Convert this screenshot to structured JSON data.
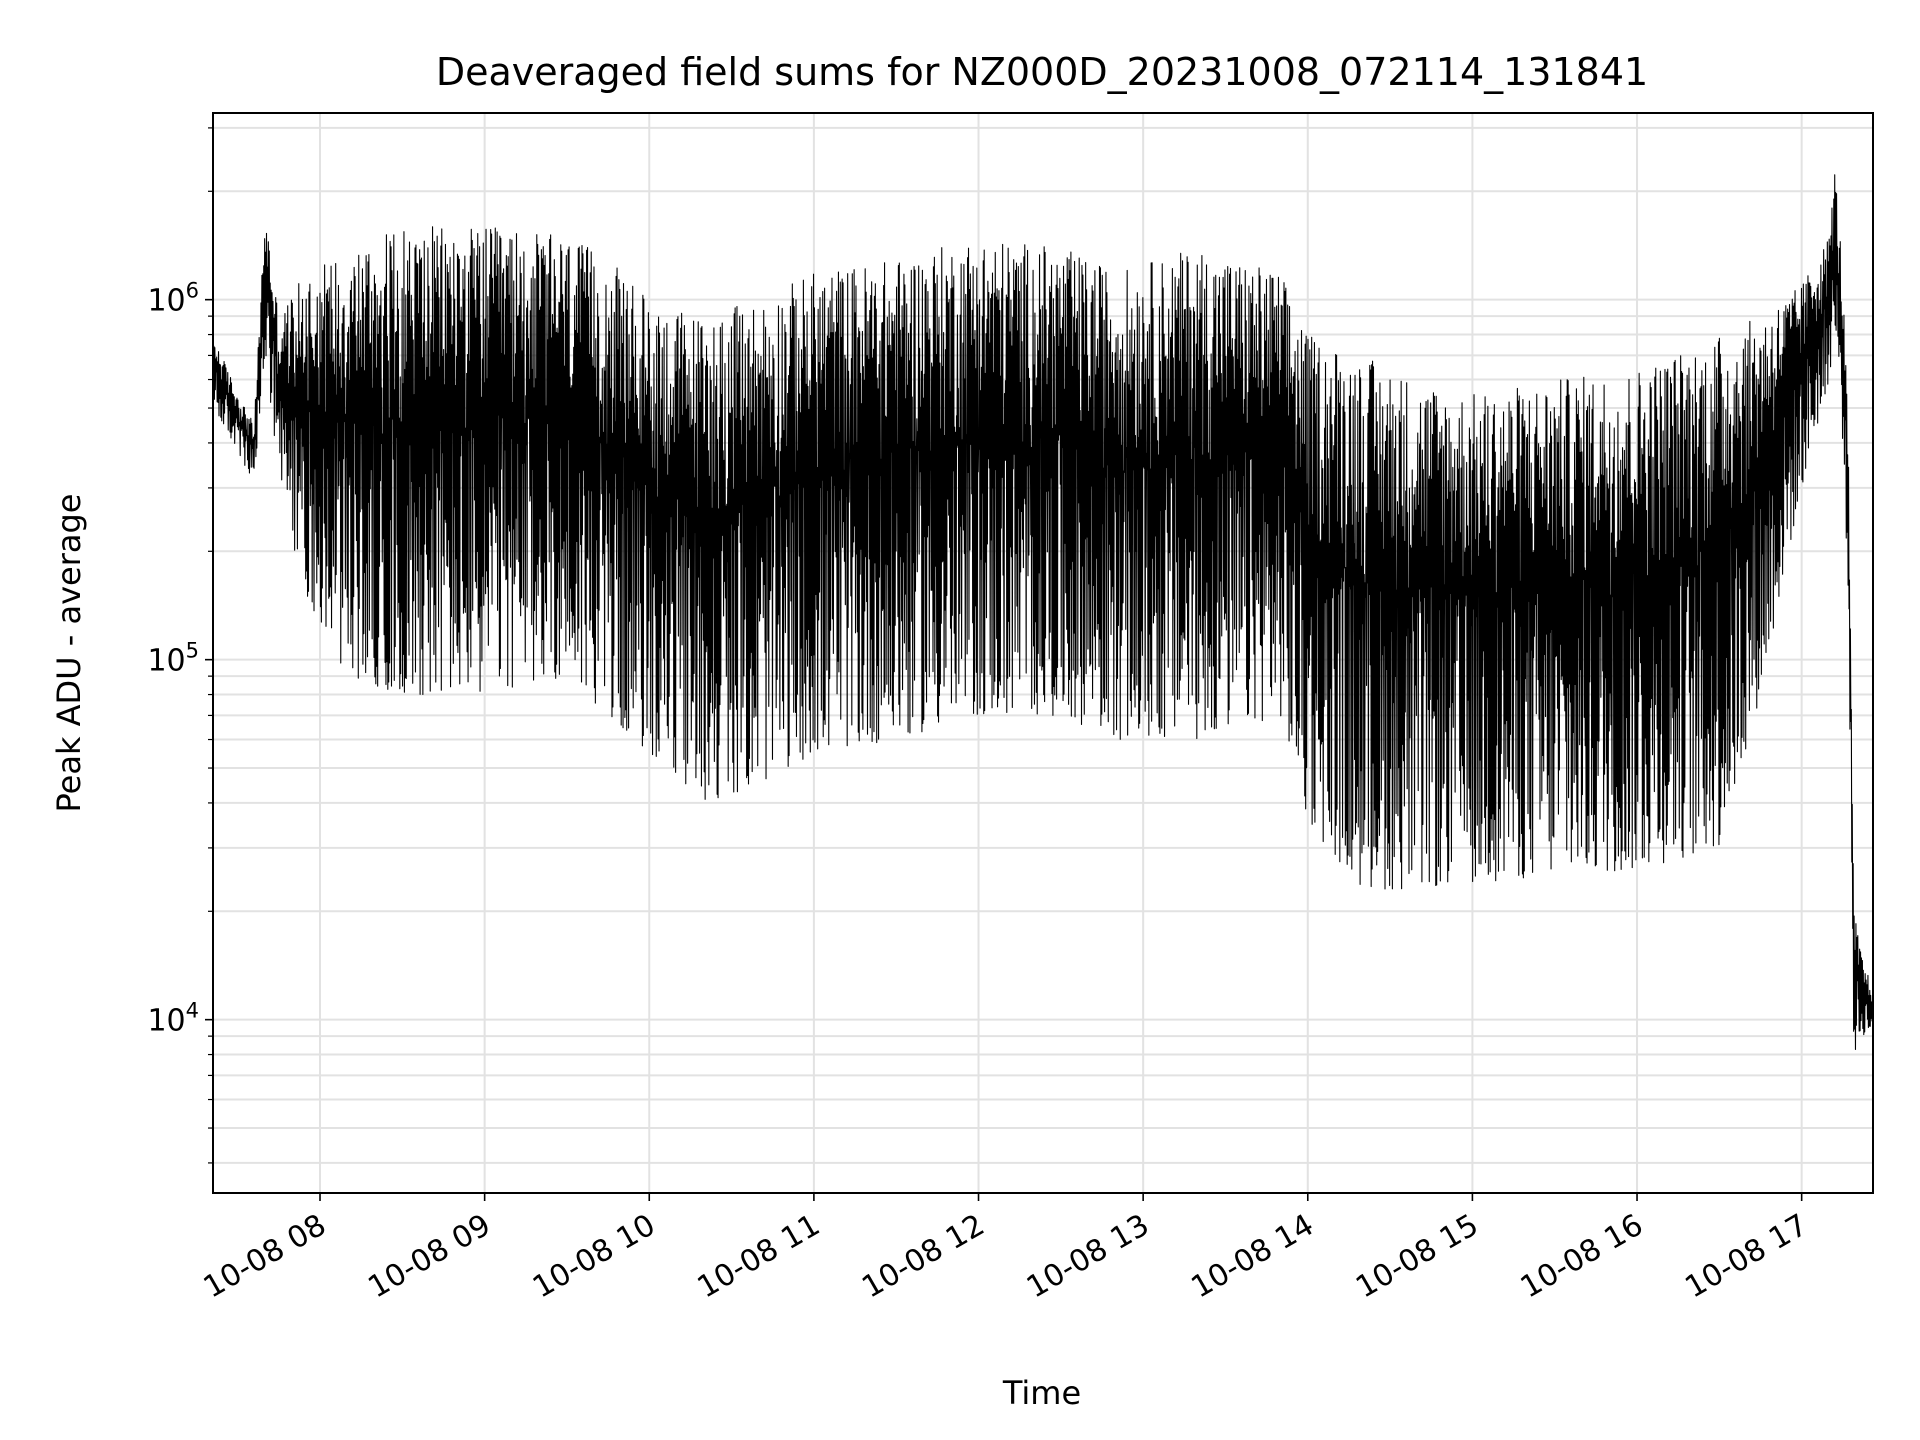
{
  "chart_data": {
    "type": "line",
    "title": "Deaveraged field sums for NZ000D_20231008_072114_131841",
    "xlabel": "Time",
    "ylabel": "Peak ADU - average",
    "yscale": "log",
    "ylim": [
      3300,
      3300000
    ],
    "xlim": [
      "2023-10-08 07:21",
      "2023-10-08 17:26"
    ],
    "grid": true,
    "line_color": "#000000",
    "x_ticks": [
      "10-08 08",
      "10-08 09",
      "10-08 10",
      "10-08 11",
      "10-08 12",
      "10-08 13",
      "10-08 14",
      "10-08 15",
      "10-08 16",
      "10-08 17"
    ],
    "x_tick_times": [
      "2023-10-08 08:00",
      "2023-10-08 09:00",
      "2023-10-08 10:00",
      "2023-10-08 11:00",
      "2023-10-08 12:00",
      "2023-10-08 13:00",
      "2023-10-08 14:00",
      "2023-10-08 15:00",
      "2023-10-08 16:00",
      "2023-10-08 17:00"
    ],
    "y_ticks": [
      {
        "value": 10000,
        "base": "10",
        "exp": "4"
      },
      {
        "value": 100000,
        "base": "10",
        "exp": "5"
      },
      {
        "value": 1000000,
        "base": "10",
        "exp": "6"
      }
    ],
    "series": [
      {
        "name": "",
        "x": [
          "2023-10-08 07:21",
          "2023-10-08 07:30",
          "2023-10-08 07:36",
          "2023-10-08 07:40",
          "2023-10-08 07:45",
          "2023-10-08 07:55",
          "2023-10-08 08:10",
          "2023-10-08 08:30",
          "2023-10-08 09:00",
          "2023-10-08 09:30",
          "2023-10-08 09:45",
          "2023-10-08 10:00",
          "2023-10-08 10:20",
          "2023-10-08 10:40",
          "2023-10-08 11:00",
          "2023-10-08 11:30",
          "2023-10-08 12:00",
          "2023-10-08 12:30",
          "2023-10-08 12:50",
          "2023-10-08 13:20",
          "2023-10-08 13:50",
          "2023-10-08 14:00",
          "2023-10-08 14:20",
          "2023-10-08 14:40",
          "2023-10-08 15:00",
          "2023-10-08 15:30",
          "2023-10-08 16:00",
          "2023-10-08 16:30",
          "2023-10-08 16:45",
          "2023-10-08 17:00",
          "2023-10-08 17:10",
          "2023-10-08 17:12",
          "2023-10-08 17:15",
          "2023-10-08 17:17",
          "2023-10-08 17:19",
          "2023-10-08 17:22",
          "2023-10-08 17:26"
        ],
        "upper": [
          800000,
          550000,
          450000,
          1800000,
          900000,
          1200000,
          1400000,
          1600000,
          1600000,
          1500000,
          1300000,
          1000000,
          900000,
          1000000,
          1200000,
          1300000,
          1500000,
          1400000,
          1200000,
          1400000,
          1200000,
          800000,
          700000,
          600000,
          550000,
          600000,
          650000,
          800000,
          900000,
          1100000,
          1500000,
          2400000,
          1200000,
          400000,
          20000,
          15000,
          12000
        ],
        "lower": [
          500000,
          380000,
          300000,
          700000,
          300000,
          150000,
          90000,
          80000,
          80000,
          90000,
          70000,
          55000,
          40000,
          45000,
          55000,
          60000,
          70000,
          70000,
          60000,
          60000,
          70000,
          35000,
          23000,
          23000,
          24000,
          25000,
          26000,
          30000,
          80000,
          300000,
          600000,
          800000,
          400000,
          150000,
          8000,
          9000,
          9500
        ]
      }
    ]
  }
}
